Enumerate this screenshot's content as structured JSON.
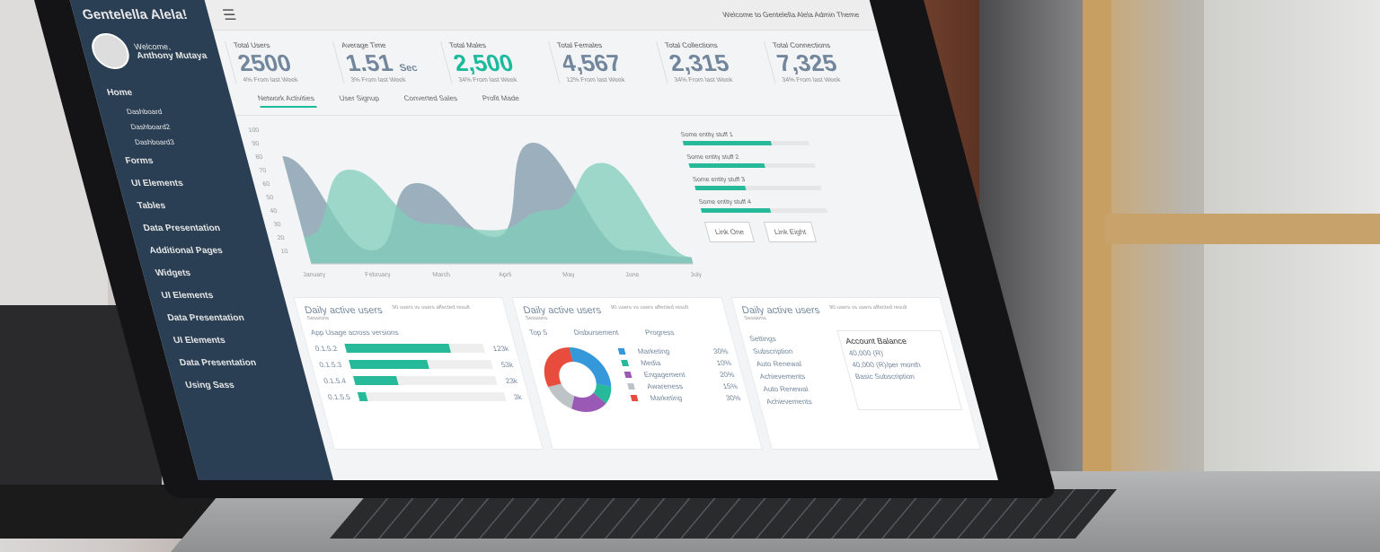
{
  "browser": {
    "url": "...page/choices/index"
  },
  "sidebar": {
    "brand": "Gentelella Alela!",
    "welcome": "Welcome,",
    "user": "Anthony Mutaya",
    "items": [
      {
        "label": "Home",
        "sub": false
      },
      {
        "label": "Dashboard",
        "sub": true
      },
      {
        "label": "Dashboard2",
        "sub": true
      },
      {
        "label": "Dashboard3",
        "sub": true
      },
      {
        "label": "Forms",
        "sub": false
      },
      {
        "label": "UI Elements",
        "sub": false
      },
      {
        "label": "Tables",
        "sub": false
      },
      {
        "label": "Data Presentation",
        "sub": false
      },
      {
        "label": "Additional Pages",
        "sub": false
      },
      {
        "label": "Widgets",
        "sub": false
      },
      {
        "label": "UI Elements",
        "sub": false
      },
      {
        "label": "Data Presentation",
        "sub": false
      },
      {
        "label": "UI Elements",
        "sub": false
      },
      {
        "label": "Data Presentation",
        "sub": false
      },
      {
        "label": "Using Sass",
        "sub": false
      }
    ]
  },
  "topbar": {
    "welcome": "Welcome to Gentelella Alela Admin Theme"
  },
  "stats": [
    {
      "label": "Total Users",
      "value": "2500",
      "unit": "",
      "sub": "4% From last Week",
      "accent": false
    },
    {
      "label": "Average Time",
      "value": "1.51",
      "unit": "Sec",
      "sub": "3% From last Week",
      "accent": false
    },
    {
      "label": "Total Males",
      "value": "2,500",
      "unit": "",
      "sub": "34% From last Week",
      "accent": true
    },
    {
      "label": "Total Females",
      "value": "4,567",
      "unit": "",
      "sub": "12% From last Week",
      "accent": false
    },
    {
      "label": "Total Collections",
      "value": "2,315",
      "unit": "",
      "sub": "34% From last Week",
      "accent": false
    },
    {
      "label": "Total Connections",
      "value": "7,325",
      "unit": "",
      "sub": "34% From last Week",
      "accent": false
    }
  ],
  "tabs": [
    "Network Activities",
    "User Signup",
    "Converted Sales",
    "Profit Made"
  ],
  "area_chart": {
    "x_labels": [
      "January",
      "February",
      "March",
      "April",
      "May",
      "June",
      "July"
    ],
    "y_ticks": [
      "100",
      "90",
      "80",
      "70",
      "60",
      "50",
      "40",
      "30",
      "20",
      "10"
    ],
    "series": [
      {
        "color": "#7e99a8",
        "values": [
          80,
          10,
          60,
          20,
          90,
          10,
          5
        ]
      },
      {
        "color": "#7fcdbb",
        "values": [
          20,
          70,
          30,
          25,
          40,
          75,
          5
        ]
      }
    ]
  },
  "legend": {
    "items": [
      {
        "label": "Some entity stuff 1",
        "pct": 70
      },
      {
        "label": "Some entity stuff 2",
        "pct": 60
      },
      {
        "label": "Some entity stuff 3",
        "pct": 40
      },
      {
        "label": "Some entity stuff 4",
        "pct": 55
      }
    ],
    "btn1": "Link One",
    "btn2": "Link Eight"
  },
  "panels": {
    "title": "Daily active users",
    "subtitle": "Sessions",
    "note": "90 users vs users affected result",
    "usage": {
      "title": "App Usage across versions",
      "rows": [
        {
          "v": "0.1.5.2",
          "val": "123k",
          "pct": 75
        },
        {
          "v": "0.1.5.3",
          "val": "53k",
          "pct": 55
        },
        {
          "v": "0.1.5.4",
          "val": "23k",
          "pct": 30
        },
        {
          "v": "0.1.5.5",
          "val": "3k",
          "pct": 5
        }
      ]
    },
    "donut": {
      "h1": "Top 5",
      "h2": "Disbursement",
      "h3": "Progress",
      "rows": [
        {
          "label": "Marketing",
          "pct": "30%",
          "color": "#3498db"
        },
        {
          "label": "Media",
          "pct": "10%",
          "color": "#26b99a"
        },
        {
          "label": "Engagement",
          "pct": "20%",
          "color": "#9b59b6"
        },
        {
          "label": "Awareness",
          "pct": "15%",
          "color": "#bdc3c7"
        },
        {
          "label": "Marketing",
          "pct": "30%",
          "color": "#e74c3c"
        }
      ]
    },
    "settings": {
      "items": [
        "Settings",
        "Subscription",
        "Auto Renewal",
        "Achievements",
        "Auto Renewal",
        "Achievements"
      ],
      "balance_title": "Account Balance",
      "balance": "40,000 (R)",
      "plan": "40,000 (R)/per month",
      "plan_name": "Basic Subscription"
    }
  }
}
